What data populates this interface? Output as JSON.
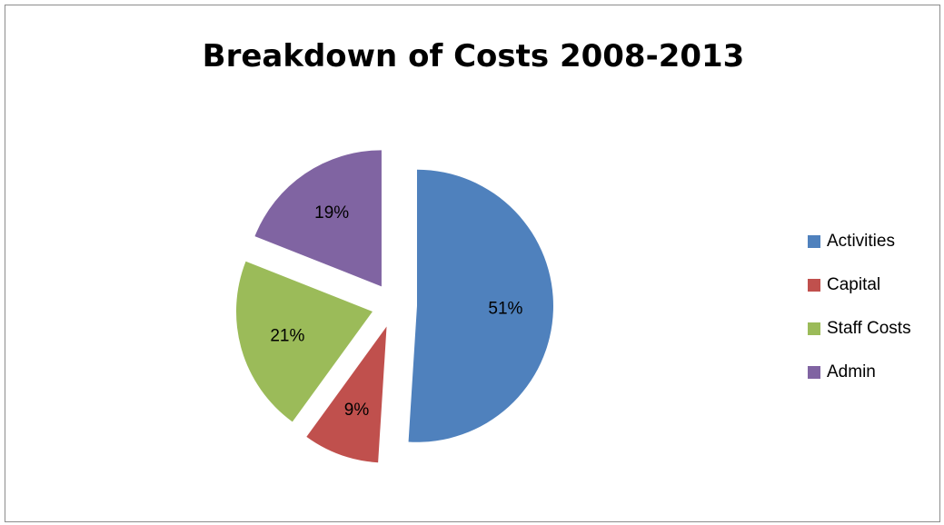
{
  "chart_data": {
    "type": "pie",
    "title": "Breakdown of Costs 2008-2013",
    "categories": [
      "Activities",
      "Capital",
      "Staff Costs",
      "Admin"
    ],
    "values": [
      51,
      9,
      21,
      19
    ],
    "labels": [
      "51%",
      "9%",
      "21%",
      "19%"
    ],
    "colors": [
      "#4F81BD",
      "#C0504D",
      "#9BBB59",
      "#8064A2"
    ],
    "exploded": true,
    "legend_position": "right"
  }
}
